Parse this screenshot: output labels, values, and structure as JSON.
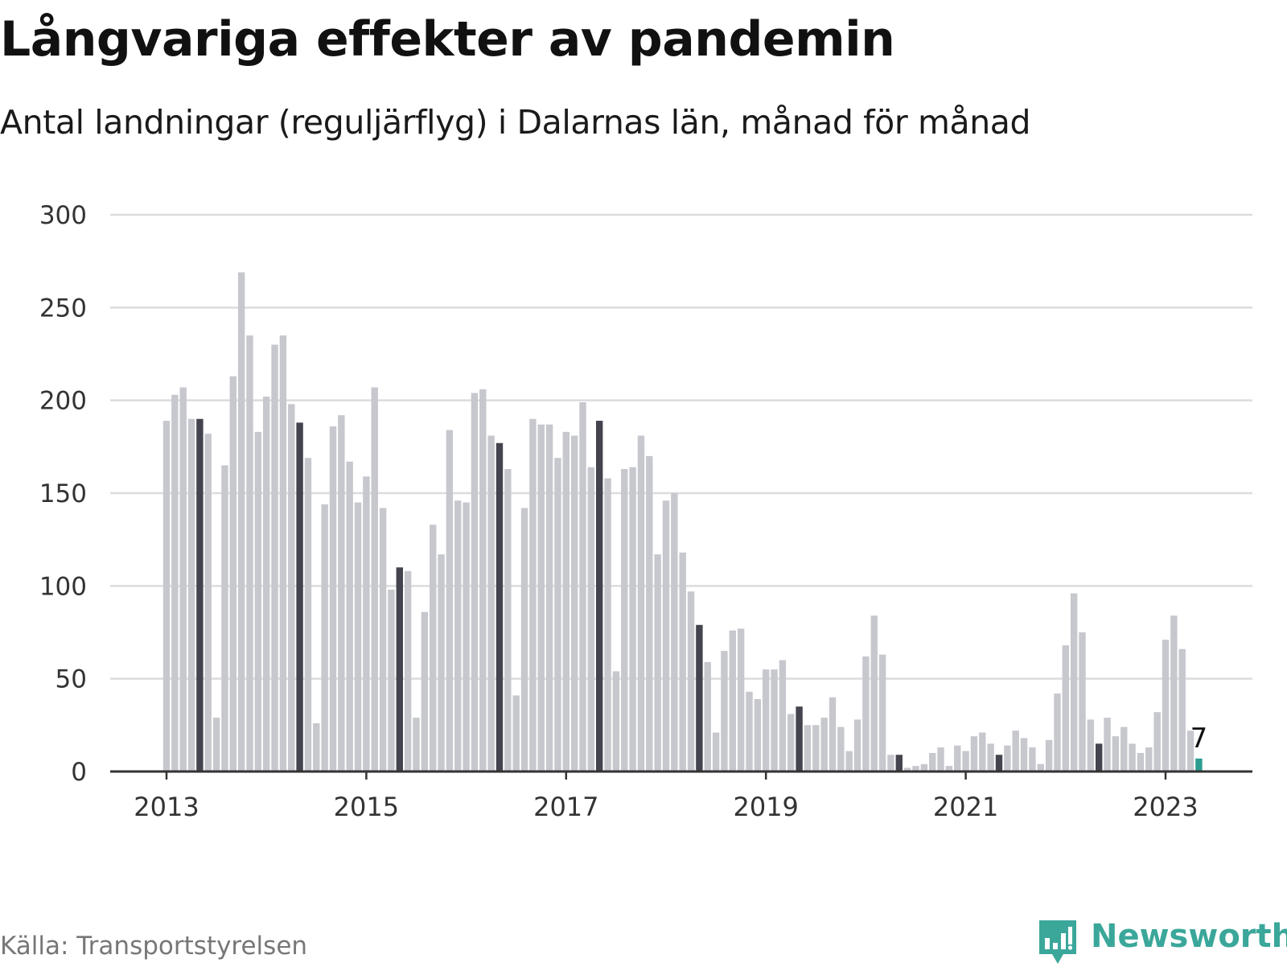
{
  "header": {
    "title": "Långvariga effekter av pandemin",
    "subtitle": "Antal landningar (reguljärflyg) i Dalarnas län, månad för månad"
  },
  "footer": {
    "source": "Källa: Transportstyrelsen",
    "brand": "Newsworthy"
  },
  "colors": {
    "bar_default": "#c7c8ce",
    "bar_highlight": "#44444e",
    "bar_latest": "#2a9d90",
    "grid": "#dcdcdf",
    "axis": "#333333",
    "brand": "#3aa79a"
  },
  "chart_data": {
    "type": "bar",
    "title": "Långvariga effekter av pandemin",
    "subtitle": "Antal landningar (reguljärflyg) i Dalarnas län, månad för månad",
    "xlabel": "",
    "ylabel": "",
    "ylim": [
      0,
      300
    ],
    "yticks": [
      0,
      50,
      100,
      150,
      200,
      250,
      300
    ],
    "xticks": [
      "2013",
      "2015",
      "2017",
      "2019",
      "2021",
      "2023"
    ],
    "grid": true,
    "start": "2013-01",
    "frequency": "monthly",
    "highlight_month": "May",
    "latest_label": "7",
    "values": [
      189,
      203,
      207,
      190,
      190,
      182,
      29,
      165,
      213,
      269,
      235,
      183,
      202,
      230,
      235,
      198,
      188,
      169,
      26,
      144,
      186,
      192,
      167,
      145,
      159,
      207,
      142,
      98,
      110,
      108,
      29,
      86,
      133,
      117,
      184,
      146,
      145,
      204,
      206,
      181,
      177,
      163,
      41,
      142,
      190,
      187,
      187,
      169,
      183,
      181,
      199,
      164,
      189,
      158,
      54,
      163,
      164,
      181,
      170,
      117,
      146,
      150,
      118,
      97,
      79,
      59,
      21,
      65,
      76,
      77,
      43,
      39,
      55,
      55,
      60,
      31,
      35,
      25,
      25,
      29,
      40,
      24,
      11,
      28,
      62,
      84,
      63,
      9,
      9,
      2,
      3,
      4,
      10,
      13,
      3,
      14,
      11,
      19,
      21,
      15,
      9,
      14,
      22,
      18,
      13,
      4,
      17,
      42,
      68,
      96,
      75,
      28,
      15,
      29,
      19,
      24,
      15,
      10,
      13,
      32,
      71,
      84,
      66,
      22,
      7
    ]
  }
}
